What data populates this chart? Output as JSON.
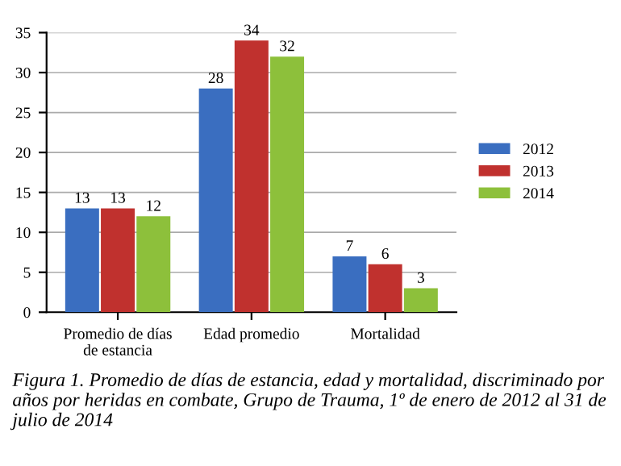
{
  "chart_data": {
    "type": "bar",
    "categories": [
      "Promedio de días\nde estancia",
      "Edad promedio",
      "Mortalidad"
    ],
    "series": [
      {
        "name": "2012",
        "color": "#3a6ec0",
        "values": [
          13,
          28,
          7
        ]
      },
      {
        "name": "2013",
        "color": "#c0312e",
        "values": [
          13,
          34,
          6
        ]
      },
      {
        "name": "2014",
        "color": "#8dc03b",
        "values": [
          12,
          32,
          3
        ]
      }
    ],
    "ylim": [
      0,
      35
    ],
    "yticks": [
      0,
      5,
      10,
      15,
      20,
      25,
      30,
      35
    ],
    "grid": "y",
    "legend": "right",
    "data_labels": true,
    "annotations": [
      "Figura 1. Promedio de días de estancia, edad y mortalidad, discriminado por años por heridas en combate, Grupo de Trauma, 1º de enero de 2012 al 31 de julio de 2014"
    ]
  }
}
